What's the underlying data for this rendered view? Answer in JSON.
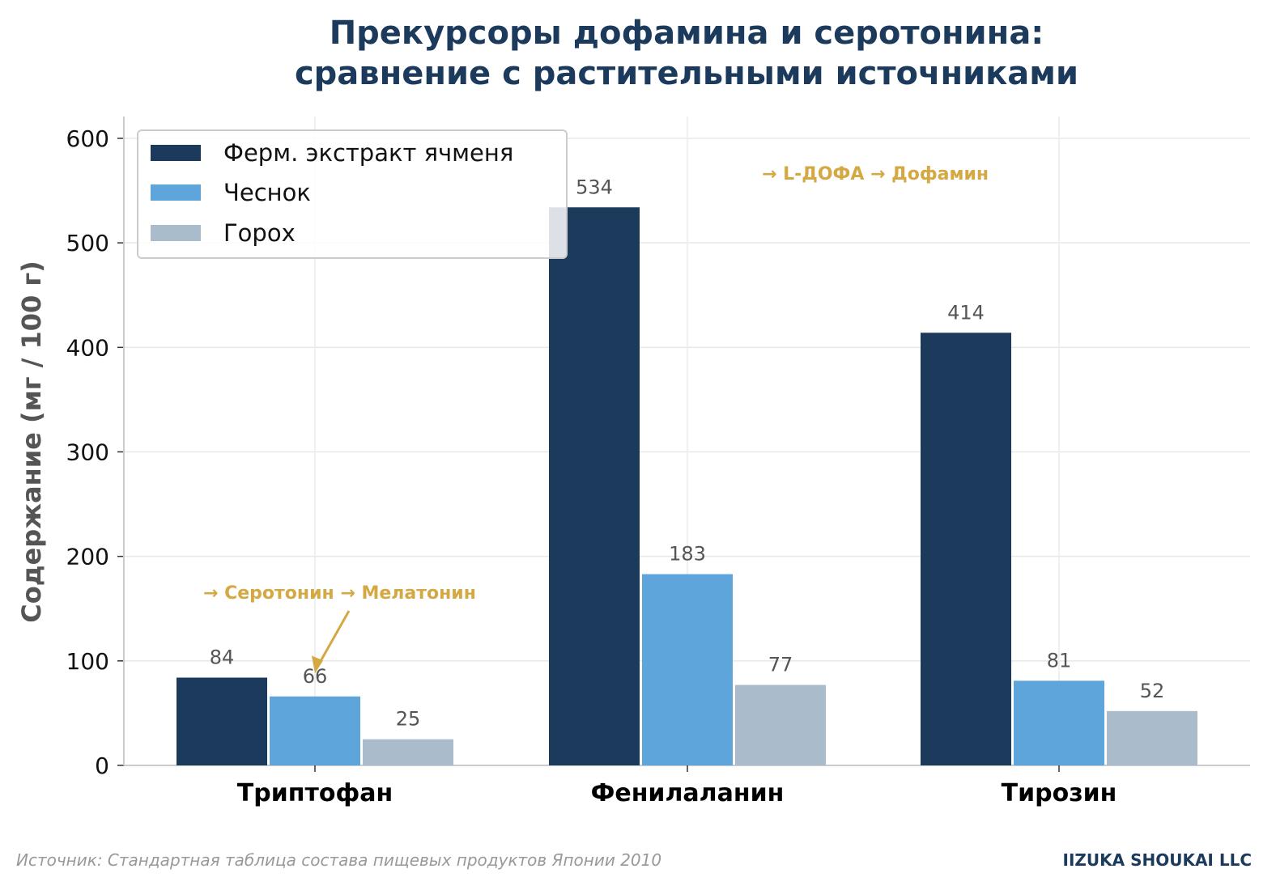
{
  "chart_data": {
    "type": "bar",
    "title": [
      "Прекурсоры дофамина и серотонина:",
      "сравнение с растительными источниками"
    ],
    "ylabel": "Содержание (мг / 100 г)",
    "xlabel": "",
    "categories": [
      "Триптофан",
      "Фенилаланин",
      "Тирозин"
    ],
    "series": [
      {
        "name": "Ферм. экстракт ячменя",
        "color": "#1b3a5c",
        "values": [
          84,
          534,
          414
        ]
      },
      {
        "name": "Чеснок",
        "color": "#5da5da",
        "values": [
          66,
          183,
          81
        ]
      },
      {
        "name": "Горох",
        "color": "#aabbcc",
        "values": [
          25,
          77,
          52
        ]
      }
    ],
    "ylim": [
      0,
      620
    ],
    "yticks": [
      0,
      100,
      200,
      300,
      400,
      500,
      600
    ],
    "grid": true,
    "legend_position": "top-left",
    "annotations": [
      {
        "text": "→ Серотонин → Мелатонин",
        "category": "Триптофан",
        "arrow_to_value": 88
      },
      {
        "text": "→ L-ДОФА → Дофамин",
        "category": "Фенилаланин"
      }
    ],
    "source": "Источник: Стандартная таблица состава пищевых продуктов Японии 2010",
    "brand": "IIZUKA SHOUKAI LLC"
  }
}
